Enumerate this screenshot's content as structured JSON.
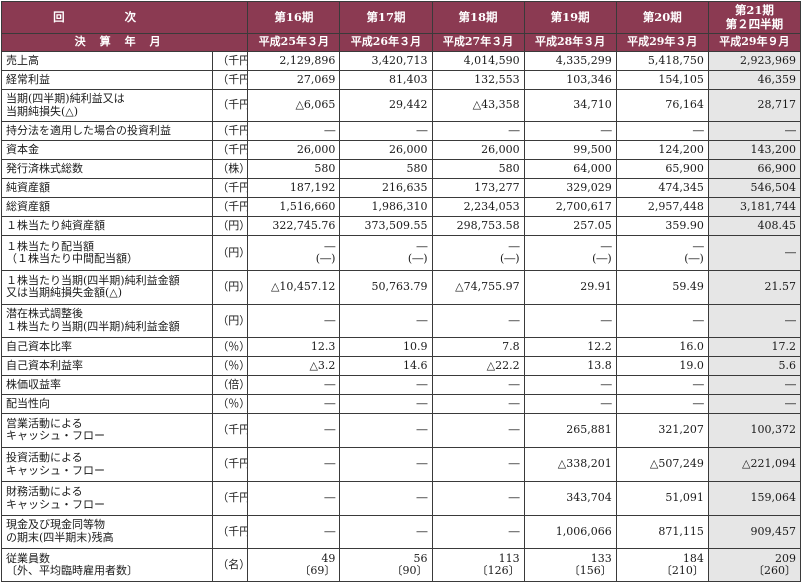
{
  "header": {
    "corner_top": "回次",
    "corner_bottom": "決算年月",
    "periods": [
      {
        "label": "第16期",
        "date": "平成25年３月"
      },
      {
        "label": "第17期",
        "date": "平成26年３月"
      },
      {
        "label": "第18期",
        "date": "平成27年３月"
      },
      {
        "label": "第19期",
        "date": "平成28年３月"
      },
      {
        "label": "第20期",
        "date": "平成29年３月"
      },
      {
        "label": "第21期",
        "label2": "第２四半期",
        "date": "平成29年９月"
      }
    ]
  },
  "rows": [
    {
      "label": "売上高",
      "unit": "（千円）",
      "values": [
        "2,129,896",
        "3,420,713",
        "4,014,590",
        "4,335,299",
        "5,418,750",
        "2,923,969"
      ]
    },
    {
      "label": "経常利益",
      "unit": "（千円）",
      "values": [
        "27,069",
        "81,403",
        "132,553",
        "103,346",
        "154,105",
        "46,359"
      ]
    },
    {
      "label": "当期(四半期)純利益又は",
      "label2": "当期純損失(△)",
      "unit": "（千円）",
      "values": [
        "△6,065",
        "29,442",
        "△43,358",
        "34,710",
        "76,164",
        "28,717"
      ]
    },
    {
      "label": "持分法を適用した場合の投資利益",
      "unit": "（千円）",
      "values": [
        "―",
        "―",
        "―",
        "―",
        "―",
        "―"
      ]
    },
    {
      "label": "資本金",
      "unit": "（千円）",
      "values": [
        "26,000",
        "26,000",
        "26,000",
        "99,500",
        "124,200",
        "143,200"
      ]
    },
    {
      "label": "発行済株式総数",
      "unit": "（株）",
      "values": [
        "580",
        "580",
        "580",
        "64,000",
        "65,900",
        "66,900"
      ]
    },
    {
      "label": "純資産額",
      "unit": "（千円）",
      "values": [
        "187,192",
        "216,635",
        "173,277",
        "329,029",
        "474,345",
        "546,504"
      ]
    },
    {
      "label": "総資産額",
      "unit": "（千円）",
      "values": [
        "1,516,660",
        "1,986,310",
        "2,234,053",
        "2,700,617",
        "2,957,448",
        "3,181,744"
      ]
    },
    {
      "label": "１株当たり純資産額",
      "unit": "（円）",
      "values": [
        "322,745.76",
        "373,509.55",
        "298,753.58",
        "257.05",
        "359.90",
        "408.45"
      ]
    },
    {
      "label": "１株当たり配当額",
      "label2": "（１株当たり中間配当額）",
      "unit": "（円）",
      "values": [
        "―",
        "―",
        "―",
        "―",
        "―",
        "―"
      ],
      "values2": [
        "(―)",
        "(―)",
        "(―)",
        "(―)",
        "(―)",
        ""
      ]
    },
    {
      "label": "１株当たり当期(四半期)純利益金額",
      "label2": "又は当期純損失金額(△)",
      "unit": "（円）",
      "values": [
        "△10,457.12",
        "50,763.79",
        "△74,755.97",
        "29.91",
        "59.49",
        "21.57"
      ]
    },
    {
      "label": "潜在株式調整後",
      "label2": "１株当たり当期(四半期)純利益金額",
      "unit": "（円）",
      "values": [
        "―",
        "―",
        "―",
        "―",
        "―",
        "―"
      ]
    },
    {
      "label": "自己資本比率",
      "unit": "（％）",
      "values": [
        "12.3",
        "10.9",
        "7.8",
        "12.2",
        "16.0",
        "17.2"
      ]
    },
    {
      "label": "自己資本利益率",
      "unit": "（％）",
      "values": [
        "△3.2",
        "14.6",
        "△22.2",
        "13.8",
        "19.0",
        "5.6"
      ]
    },
    {
      "label": "株価収益率",
      "unit": "（倍）",
      "values": [
        "―",
        "―",
        "―",
        "―",
        "―",
        "―"
      ]
    },
    {
      "label": "配当性向",
      "unit": "（％）",
      "values": [
        "―",
        "―",
        "―",
        "―",
        "―",
        "―"
      ]
    },
    {
      "label": "営業活動による",
      "label2": "キャッシュ・フロー",
      "unit": "（千円）",
      "values": [
        "―",
        "―",
        "―",
        "265,881",
        "321,207",
        "100,372"
      ]
    },
    {
      "label": "投資活動による",
      "label2": "キャッシュ・フロー",
      "unit": "（千円）",
      "values": [
        "―",
        "―",
        "―",
        "△338,201",
        "△507,249",
        "△221,094"
      ]
    },
    {
      "label": "財務活動による",
      "label2": "キャッシュ・フロー",
      "unit": "（千円）",
      "values": [
        "―",
        "―",
        "―",
        "343,704",
        "51,091",
        "159,064"
      ]
    },
    {
      "label": "現金及び現金同等物",
      "label2": "の期末(四半期末)残高",
      "unit": "（千円）",
      "values": [
        "―",
        "―",
        "―",
        "1,006,066",
        "871,115",
        "909,457"
      ]
    },
    {
      "label": "従業員数",
      "label2": "〔外、平均臨時雇用者数〕",
      "unit": "（名）",
      "values": [
        "49",
        "56",
        "113",
        "133",
        "184",
        "209"
      ],
      "values2": [
        "〔69〕",
        "〔90〕",
        "〔126〕",
        "〔156〕",
        "〔210〕",
        "〔260〕"
      ]
    }
  ]
}
